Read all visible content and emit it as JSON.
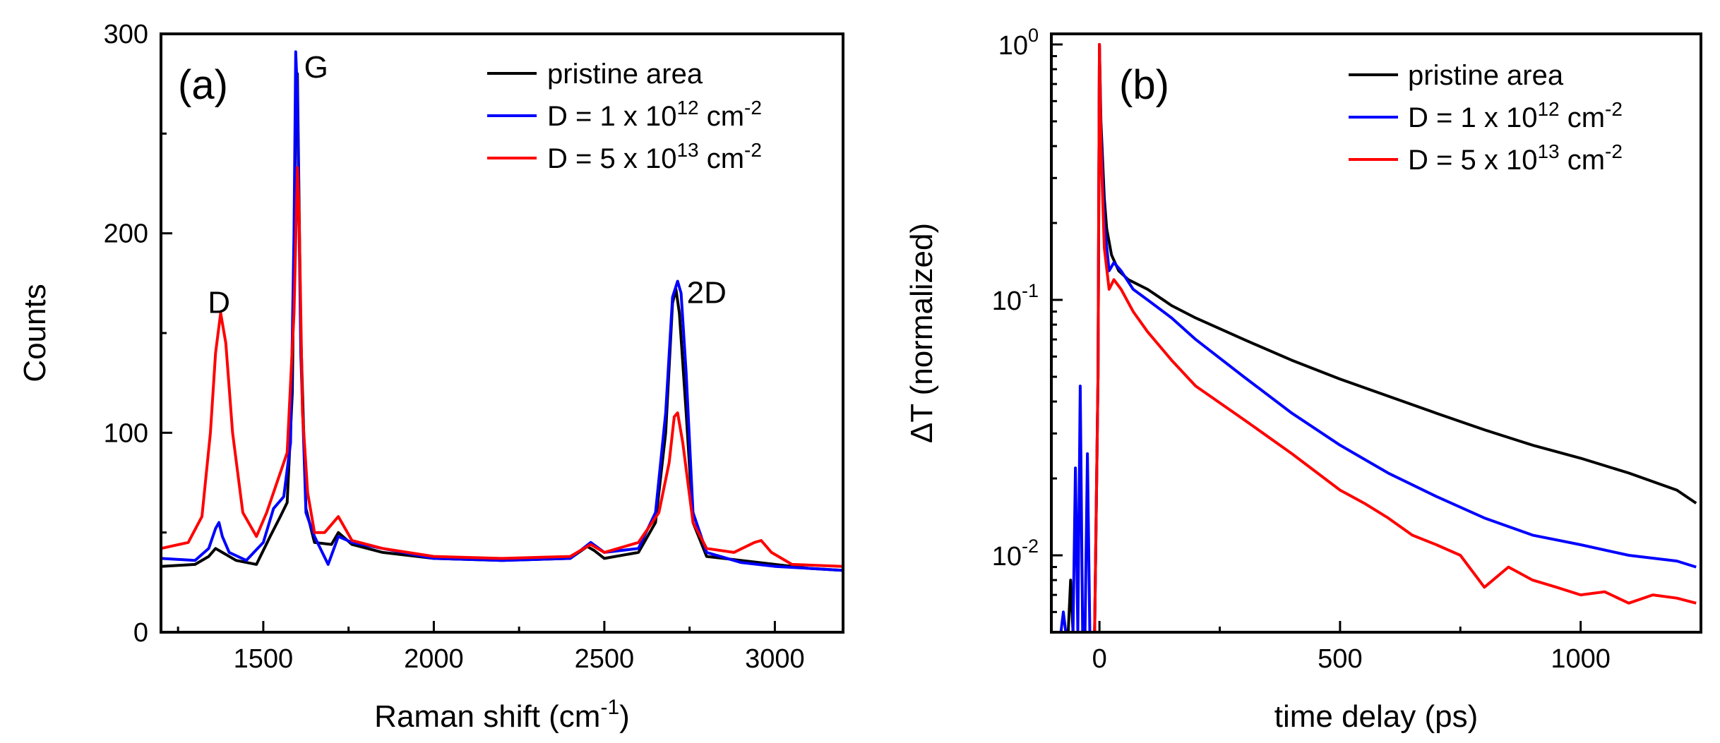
{
  "chart_data": [
    {
      "panel": "(a)",
      "type": "line",
      "xlabel_main": "Raman shift (cm",
      "xlabel_sup": "-1",
      "xlabel_close": ")",
      "ylabel": "Counts",
      "xlim": [
        1200,
        3200
      ],
      "ylim": [
        0,
        300
      ],
      "xticks": [
        1500,
        2000,
        2500,
        3000
      ],
      "xtick_labels": [
        "1500",
        "2000",
        "2500",
        "3000"
      ],
      "yticks": [
        0,
        100,
        200,
        300
      ],
      "ytick_labels": [
        "0",
        "100",
        "200",
        "300"
      ],
      "peak_labels": [
        {
          "text": "D",
          "x": 1370,
          "y": 160
        },
        {
          "text": "G",
          "x": 1655,
          "y": 278
        },
        {
          "text": "2D",
          "x": 2800,
          "y": 165
        }
      ],
      "legend": [
        {
          "name": "pristine area",
          "color": "#000000"
        },
        {
          "name_main": "D = 1 x 10",
          "sup": "12",
          "unit": " cm",
          "unit_sup": "-2",
          "color": "#0000ff"
        },
        {
          "name_main": "D = 5 x 10",
          "sup": "13",
          "unit": " cm",
          "unit_sup": "-2",
          "color": "#ff0000"
        }
      ],
      "series": [
        {
          "name": "pristine area",
          "color": "#000000",
          "x": [
            1200,
            1300,
            1340,
            1360,
            1380,
            1420,
            1480,
            1520,
            1550,
            1570,
            1585,
            1595,
            1600,
            1610,
            1625,
            1650,
            1700,
            1720,
            1760,
            1850,
            2000,
            2200,
            2400,
            2450,
            2470,
            2500,
            2600,
            2650,
            2680,
            2700,
            2710,
            2720,
            2740,
            2760,
            2800,
            2900,
            3000,
            3100,
            3200
          ],
          "y": [
            33,
            34,
            38,
            42,
            40,
            36,
            34,
            48,
            58,
            65,
            120,
            260,
            280,
            150,
            62,
            45,
            44,
            50,
            44,
            40,
            37,
            36,
            37,
            43,
            41,
            37,
            40,
            55,
            100,
            165,
            172,
            160,
            110,
            55,
            38,
            36,
            34,
            32,
            31
          ]
        },
        {
          "name": "D = 1 x 10^12 cm^-2",
          "color": "#0000ff",
          "x": [
            1200,
            1300,
            1340,
            1360,
            1370,
            1380,
            1400,
            1450,
            1500,
            1530,
            1560,
            1580,
            1590,
            1595,
            1600,
            1610,
            1625,
            1650,
            1690,
            1720,
            1760,
            1850,
            2000,
            2200,
            2400,
            2460,
            2500,
            2600,
            2650,
            2680,
            2700,
            2715,
            2725,
            2740,
            2760,
            2800,
            2900,
            3000,
            3100,
            3200
          ],
          "y": [
            37,
            36,
            42,
            52,
            55,
            48,
            40,
            36,
            45,
            62,
            68,
            95,
            200,
            291,
            270,
            140,
            60,
            48,
            34,
            48,
            45,
            42,
            37,
            36,
            37,
            45,
            40,
            42,
            60,
            110,
            168,
            176,
            170,
            130,
            60,
            40,
            35,
            33,
            32,
            31
          ]
        },
        {
          "name": "D = 5 x 10^13 cm^-2",
          "color": "#ff0000",
          "x": [
            1200,
            1280,
            1320,
            1345,
            1360,
            1375,
            1390,
            1410,
            1440,
            1480,
            1510,
            1540,
            1570,
            1590,
            1600,
            1605,
            1615,
            1630,
            1650,
            1680,
            1720,
            1760,
            1850,
            2000,
            2200,
            2400,
            2460,
            2500,
            2600,
            2660,
            2690,
            2705,
            2715,
            2730,
            2760,
            2800,
            2880,
            2940,
            2960,
            2990,
            3050,
            3200
          ],
          "y": [
            42,
            45,
            58,
            100,
            140,
            160,
            145,
            100,
            60,
            48,
            60,
            75,
            90,
            160,
            233,
            210,
            110,
            70,
            50,
            50,
            58,
            46,
            42,
            38,
            37,
            38,
            44,
            40,
            45,
            60,
            85,
            108,
            110,
            95,
            55,
            42,
            40,
            45,
            46,
            40,
            34,
            33
          ]
        }
      ]
    },
    {
      "panel": "(b)",
      "type": "line",
      "xlabel": "time delay (ps)",
      "ylabel": "ΔT (normalized)",
      "yscale": "log",
      "xlim": [
        -100,
        1250
      ],
      "ylim": [
        0.005,
        1.1
      ],
      "xticks": [
        0,
        500,
        1000
      ],
      "xtick_labels": [
        "0",
        "500",
        "1000"
      ],
      "yticks": [
        0.01,
        0.1,
        1
      ],
      "ytick_labels": [
        {
          "base": "10",
          "exp": "-2"
        },
        {
          "base": "10",
          "exp": "-1"
        },
        {
          "base": "10",
          "exp": "0"
        }
      ],
      "legend": [
        {
          "name": "pristine area",
          "color": "#000000"
        },
        {
          "name_main": "D = 1 x 10",
          "sup": "12",
          "unit": " cm",
          "unit_sup": "-2",
          "color": "#0000ff"
        },
        {
          "name_main": "D = 5 x 10",
          "sup": "13",
          "unit": " cm",
          "unit_sup": "-2",
          "color": "#ff0000"
        }
      ],
      "series": [
        {
          "name": "pristine area",
          "color": "#000000",
          "x": [
            -80,
            -65,
            -60,
            -55,
            -40,
            -10,
            -3,
            0,
            3,
            10,
            15,
            25,
            40,
            60,
            100,
            150,
            200,
            300,
            400,
            500,
            600,
            700,
            800,
            900,
            1000,
            1100,
            1200,
            1240
          ],
          "y": [
            0.005,
            0.005,
            0.008,
            0.005,
            0.005,
            0.005,
            0.05,
            1.0,
            0.5,
            0.25,
            0.19,
            0.15,
            0.13,
            0.12,
            0.11,
            0.095,
            0.085,
            0.07,
            0.058,
            0.049,
            0.042,
            0.036,
            0.031,
            0.027,
            0.024,
            0.021,
            0.018,
            0.016
          ]
        },
        {
          "name": "D = 1 x 10^12 cm^-2",
          "color": "#0000ff",
          "x": [
            -80,
            -75,
            -70,
            -55,
            -50,
            -45,
            -40,
            -35,
            -30,
            -25,
            -20,
            -15,
            -10,
            -3,
            0,
            3,
            10,
            20,
            30,
            45,
            70,
            100,
            150,
            200,
            300,
            400,
            500,
            600,
            700,
            800,
            900,
            1000,
            1100,
            1200,
            1240
          ],
          "y": [
            0.005,
            0.006,
            0.005,
            0.005,
            0.022,
            0.005,
            0.046,
            0.005,
            0.005,
            0.025,
            0.005,
            0.005,
            0.005,
            0.05,
            1.0,
            0.45,
            0.2,
            0.13,
            0.14,
            0.13,
            0.11,
            0.1,
            0.085,
            0.07,
            0.05,
            0.036,
            0.027,
            0.021,
            0.017,
            0.014,
            0.012,
            0.011,
            0.01,
            0.0095,
            0.009
          ]
        },
        {
          "name": "D = 5 x 10^13 cm^-2",
          "color": "#ff0000",
          "x": [
            -100,
            -10,
            -3,
            0,
            3,
            10,
            20,
            30,
            45,
            70,
            100,
            150,
            200,
            300,
            400,
            500,
            550,
            600,
            650,
            700,
            750,
            800,
            850,
            900,
            950,
            1000,
            1050,
            1100,
            1150,
            1200,
            1240
          ],
          "y": [
            0.005,
            0.005,
            0.05,
            1.0,
            0.4,
            0.16,
            0.11,
            0.12,
            0.11,
            0.09,
            0.075,
            0.058,
            0.046,
            0.034,
            0.025,
            0.018,
            0.016,
            0.014,
            0.012,
            0.011,
            0.01,
            0.0075,
            0.009,
            0.008,
            0.0075,
            0.007,
            0.0072,
            0.0065,
            0.007,
            0.0068,
            0.0065
          ]
        }
      ]
    }
  ]
}
